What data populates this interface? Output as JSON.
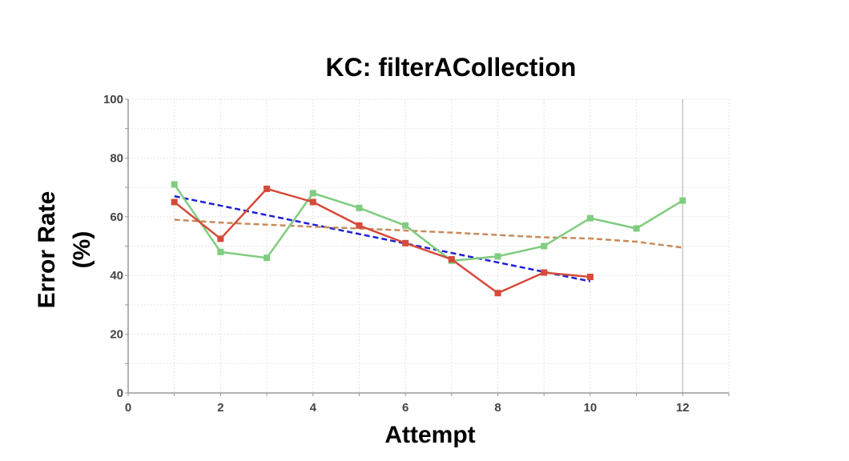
{
  "chart_data": {
    "type": "line",
    "title": "KC: filterACollection",
    "xlabel": "Attempt",
    "ylabel_lines": [
      "Error Rate",
      "(%)"
    ],
    "xlim": [
      0,
      13
    ],
    "ylim": [
      0,
      100
    ],
    "xticks": [
      0,
      2,
      4,
      6,
      8,
      10,
      12
    ],
    "yticks": [
      0,
      20,
      40,
      60,
      80,
      100
    ],
    "grid": true,
    "series": [
      {
        "style": "solid",
        "color": "#80cc80",
        "markers": true,
        "x": [
          1,
          2,
          3,
          4,
          5,
          6,
          7,
          8,
          9,
          10,
          11,
          12
        ],
        "y": [
          71,
          48,
          46,
          68,
          63,
          57,
          45,
          46.5,
          50,
          59.5,
          56,
          65.5
        ]
      },
      {
        "style": "solid",
        "color": "#d64a3a",
        "markers": true,
        "x": [
          1,
          2,
          3,
          4,
          5,
          6,
          7,
          8,
          9,
          10
        ],
        "y": [
          65,
          52.5,
          69.5,
          65,
          57,
          51,
          45.5,
          34,
          41,
          39.5
        ]
      },
      {
        "style": "dashed",
        "color": "#1f1fd6",
        "markers": false,
        "x": [
          1,
          10
        ],
        "y": [
          67,
          38
        ]
      },
      {
        "style": "dashed",
        "color": "#c88a5a",
        "markers": false,
        "x": [
          1,
          2,
          3,
          4,
          5,
          6,
          7,
          8,
          9,
          10,
          11,
          12
        ],
        "y": [
          59,
          58,
          57.3,
          56.6,
          56,
          55.3,
          54.6,
          53.8,
          53,
          52.6,
          51.5,
          49.5
        ]
      }
    ]
  }
}
